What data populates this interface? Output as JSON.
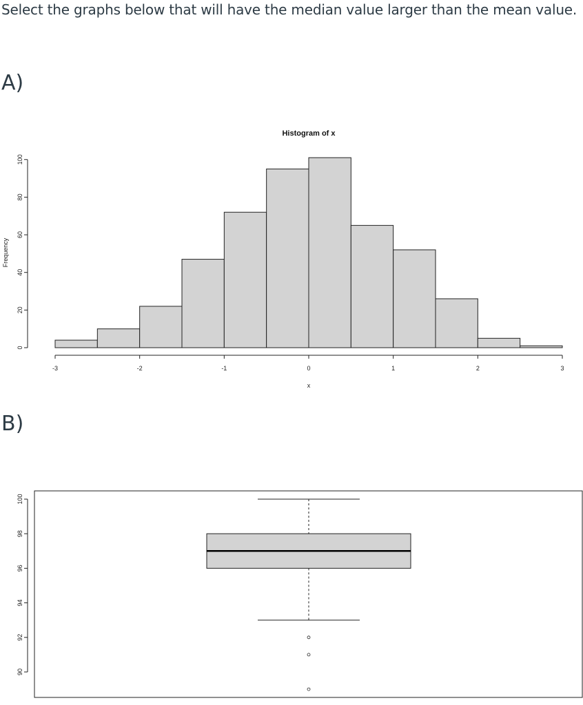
{
  "question": "Select the graphs below that will have the median value larger than the mean value.",
  "options": [
    {
      "label": "A)"
    },
    {
      "label": "B)"
    }
  ],
  "chart_data": [
    {
      "type": "bar",
      "subtype": "histogram",
      "title": "Histogram of x",
      "xlabel": "x",
      "ylabel": "Frequency",
      "bin_edges": [
        -3,
        -2.5,
        -2,
        -1.5,
        -1,
        -0.5,
        0,
        0.5,
        1,
        1.5,
        2,
        2.5,
        3
      ],
      "values": [
        4,
        10,
        22,
        47,
        72,
        95,
        101,
        65,
        52,
        26,
        5,
        1
      ],
      "xlim": [
        -3,
        3
      ],
      "ylim": [
        0,
        101
      ],
      "xticks": [
        -3,
        -2,
        -1,
        0,
        1,
        2,
        3
      ],
      "yticks": [
        0,
        20,
        40,
        60,
        80,
        100
      ],
      "bar_fill": "#d3d3d3",
      "bar_stroke": "#222222"
    },
    {
      "type": "boxplot",
      "ylim": [
        88.8,
        100.4
      ],
      "yticks": [
        90,
        92,
        94,
        96,
        98,
        100
      ],
      "whisker_low": 93,
      "q1": 96,
      "median": 97,
      "q3": 98,
      "whisker_high": 100,
      "outliers": [
        92,
        91,
        89
      ],
      "box_fill": "#d3d3d3",
      "box_stroke": "#222222"
    }
  ]
}
